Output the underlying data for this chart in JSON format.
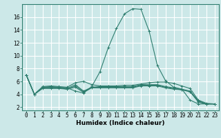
{
  "bg_color": "#cce8e8",
  "grid_color": "#ffffff",
  "line_color": "#2e7d6e",
  "marker": "+",
  "xlabel": "Humidex (Indice chaleur)",
  "xlabel_fontsize": 6.5,
  "tick_fontsize": 5.5,
  "ylim": [
    1.5,
    18.0
  ],
  "xlim": [
    -0.5,
    23.5
  ],
  "yticks": [
    2,
    4,
    6,
    8,
    10,
    12,
    14,
    16
  ],
  "xticks": [
    0,
    1,
    2,
    3,
    4,
    5,
    6,
    7,
    8,
    9,
    10,
    11,
    12,
    13,
    14,
    15,
    16,
    17,
    18,
    19,
    20,
    21,
    22,
    23
  ],
  "series": [
    [
      7.0,
      4.0,
      5.1,
      5.2,
      5.1,
      5.0,
      4.5,
      4.2,
      5.2,
      7.5,
      11.2,
      14.2,
      16.5,
      17.3,
      17.2,
      13.8,
      8.5,
      6.1,
      5.1,
      4.8,
      3.1,
      2.5,
      2.5,
      2.5
    ],
    [
      7.0,
      4.0,
      5.2,
      5.3,
      5.2,
      5.1,
      5.8,
      6.0,
      5.5,
      5.3,
      5.3,
      5.3,
      5.4,
      5.4,
      5.6,
      5.8,
      5.9,
      5.9,
      5.7,
      5.3,
      4.9,
      3.1,
      2.6,
      2.5
    ],
    [
      7.0,
      4.0,
      5.1,
      5.1,
      5.1,
      4.9,
      5.5,
      4.5,
      5.1,
      5.2,
      5.2,
      5.2,
      5.2,
      5.2,
      5.5,
      5.5,
      5.5,
      5.2,
      5.0,
      4.8,
      4.5,
      3.0,
      2.5,
      2.5
    ],
    [
      7.0,
      4.0,
      5.0,
      5.0,
      5.0,
      4.8,
      5.3,
      4.4,
      5.1,
      5.1,
      5.1,
      5.1,
      5.1,
      5.1,
      5.4,
      5.4,
      5.4,
      5.1,
      4.9,
      4.7,
      4.4,
      2.9,
      2.5,
      2.5
    ],
    [
      7.0,
      4.0,
      4.9,
      4.9,
      4.9,
      4.8,
      5.1,
      4.3,
      5.0,
      5.0,
      5.0,
      5.0,
      5.0,
      5.0,
      5.3,
      5.3,
      5.3,
      5.0,
      4.8,
      4.7,
      4.4,
      2.8,
      2.5,
      2.5
    ]
  ]
}
